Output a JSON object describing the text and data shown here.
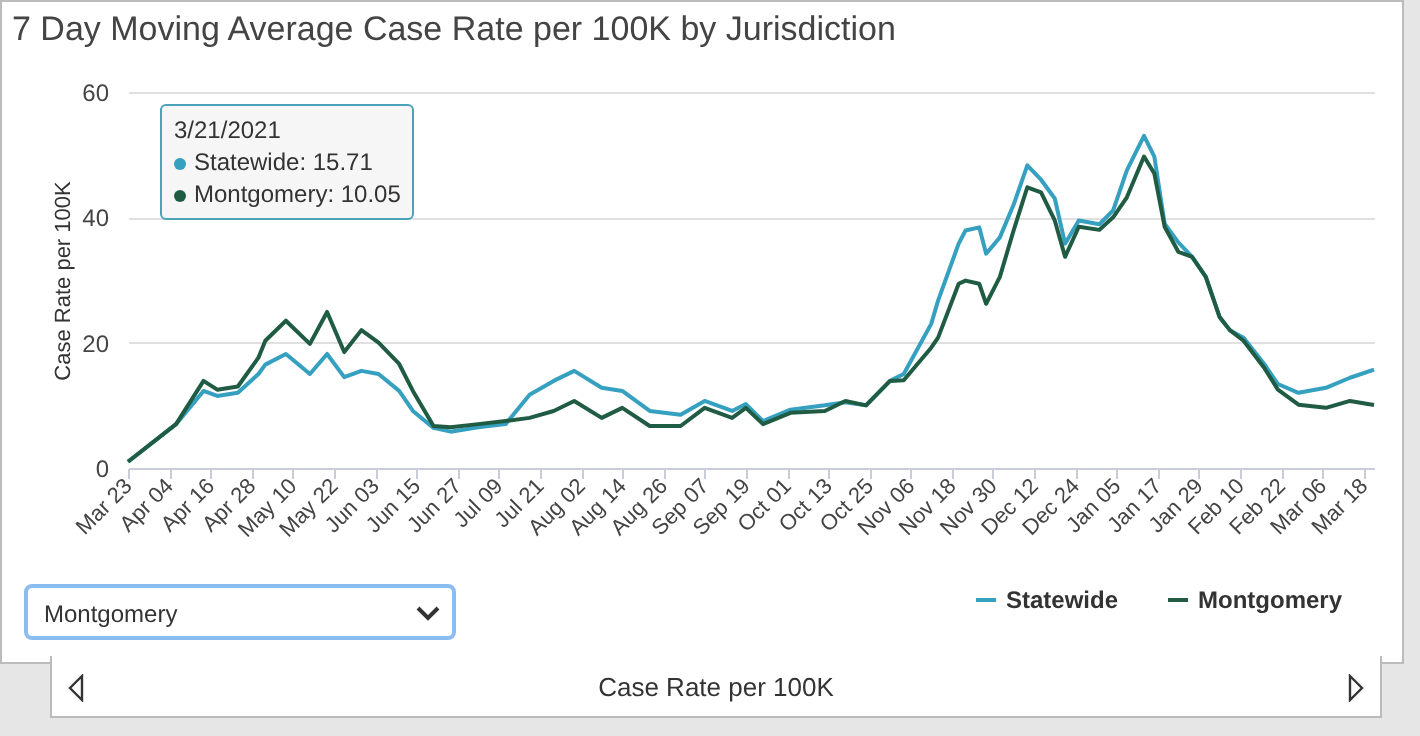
{
  "chart_data": {
    "type": "line",
    "title": "7 Day Moving Average Case Rate per 100K by Jurisdiction",
    "ylabel": "Case Rate per 100K",
    "x": [
      "2020-03-23",
      "2020-04-06",
      "2020-04-14",
      "2020-04-18",
      "2020-04-24",
      "2020-04-30",
      "2020-05-02",
      "2020-05-08",
      "2020-05-15",
      "2020-05-20",
      "2020-05-25",
      "2020-05-30",
      "2020-06-04",
      "2020-06-10",
      "2020-06-14",
      "2020-06-20",
      "2020-06-25",
      "2020-07-03",
      "2020-07-11",
      "2020-07-18",
      "2020-07-25",
      "2020-07-31",
      "2020-08-08",
      "2020-08-14",
      "2020-08-22",
      "2020-08-31",
      "2020-09-07",
      "2020-09-15",
      "2020-09-19",
      "2020-09-24",
      "2020-10-02",
      "2020-10-12",
      "2020-10-18",
      "2020-10-24",
      "2020-10-31",
      "2020-11-04",
      "2020-11-12",
      "2020-11-14",
      "2020-11-20",
      "2020-11-22",
      "2020-11-26",
      "2020-11-28",
      "2020-12-02",
      "2020-12-06",
      "2020-12-10",
      "2020-12-14",
      "2020-12-18",
      "2020-12-21",
      "2020-12-25",
      "2020-12-31",
      "2021-01-04",
      "2021-01-08",
      "2021-01-13",
      "2021-01-16",
      "2021-01-19",
      "2021-01-23",
      "2021-01-27",
      "2021-01-31",
      "2021-02-04",
      "2021-02-07",
      "2021-02-11",
      "2021-02-17",
      "2021-02-21",
      "2021-02-27",
      "2021-03-07",
      "2021-03-14",
      "2021-03-21"
    ],
    "series": [
      {
        "name": "Statewide",
        "color": "#35a0c0",
        "values": [
          1,
          7,
          12.3,
          11.5,
          12,
          15,
          16.5,
          18.2,
          15,
          18.2,
          14.5,
          15.5,
          15,
          12.3,
          9.1,
          6.4,
          5.8,
          6.5,
          7,
          11.7,
          13.9,
          15.5,
          12.8,
          12.3,
          9.1,
          8.5,
          10.7,
          9.1,
          10.2,
          7.5,
          9.3,
          10,
          10.5,
          10,
          13.9,
          15,
          23,
          26.7,
          35.8,
          37.9,
          38.4,
          34.2,
          36.8,
          42,
          48.3,
          46,
          43,
          35.8,
          39.5,
          38.9,
          41.1,
          47.5,
          53,
          49.7,
          39,
          36,
          33.7,
          30.5,
          24.1,
          22,
          20.8,
          16.6,
          13.4,
          12,
          12.8,
          14.4,
          15.71
        ]
      },
      {
        "name": "Montgomery",
        "color": "#1f5c43",
        "values": [
          1,
          7,
          13.9,
          12.5,
          13,
          17.6,
          20.3,
          23.5,
          19.8,
          24.9,
          18.5,
          22,
          20,
          16.6,
          12.3,
          6.7,
          6.5,
          7,
          7.5,
          8,
          9.1,
          10.7,
          8,
          9.6,
          6.7,
          6.7,
          9.6,
          8,
          9.6,
          7,
          8.8,
          9.1,
          10.7,
          10,
          13.9,
          14,
          19.2,
          20.8,
          29.4,
          29.9,
          29.4,
          26.2,
          30.5,
          37.9,
          44.8,
          44,
          39.5,
          33.7,
          38.5,
          38,
          40,
          43.2,
          49.7,
          47,
          38.5,
          34.5,
          33.7,
          30.5,
          24.1,
          22,
          20.3,
          16,
          12.5,
          10.1,
          9.6,
          10.7,
          10.05
        ]
      }
    ],
    "xlim": [
      "2020-03-23",
      "2021-03-21"
    ],
    "xticks": [
      {
        "value": "2020-03-23",
        "label": "Mar 23"
      },
      {
        "value": "2020-04-04",
        "label": "Apr 04"
      },
      {
        "value": "2020-04-16",
        "label": "Apr 16"
      },
      {
        "value": "2020-04-28",
        "label": "Apr 28"
      },
      {
        "value": "2020-05-10",
        "label": "May 10"
      },
      {
        "value": "2020-05-22",
        "label": "May 22"
      },
      {
        "value": "2020-06-03",
        "label": "Jun 03"
      },
      {
        "value": "2020-06-15",
        "label": "Jun 15"
      },
      {
        "value": "2020-06-27",
        "label": "Jun 27"
      },
      {
        "value": "2020-07-09",
        "label": "Jul 09"
      },
      {
        "value": "2020-07-21",
        "label": "Jul 21"
      },
      {
        "value": "2020-08-02",
        "label": "Aug 02"
      },
      {
        "value": "2020-08-14",
        "label": "Aug 14"
      },
      {
        "value": "2020-08-26",
        "label": "Aug 26"
      },
      {
        "value": "2020-09-07",
        "label": "Sep 07"
      },
      {
        "value": "2020-09-19",
        "label": "Sep 19"
      },
      {
        "value": "2020-10-01",
        "label": "Oct 01"
      },
      {
        "value": "2020-10-13",
        "label": "Oct 13"
      },
      {
        "value": "2020-10-25",
        "label": "Oct 25"
      },
      {
        "value": "2020-11-06",
        "label": "Nov 06"
      },
      {
        "value": "2020-11-18",
        "label": "Nov 18"
      },
      {
        "value": "2020-11-30",
        "label": "Nov 30"
      },
      {
        "value": "2020-12-12",
        "label": "Dec 12"
      },
      {
        "value": "2020-12-24",
        "label": "Dec 24"
      },
      {
        "value": "2021-01-05",
        "label": "Jan 05"
      },
      {
        "value": "2021-01-17",
        "label": "Jan 17"
      },
      {
        "value": "2021-01-29",
        "label": "Jan 29"
      },
      {
        "value": "2021-02-10",
        "label": "Feb 10"
      },
      {
        "value": "2021-02-22",
        "label": "Feb 22"
      },
      {
        "value": "2021-03-06",
        "label": "Mar 06"
      },
      {
        "value": "2021-03-18",
        "label": "Mar 18"
      }
    ],
    "ylim": [
      0,
      60
    ],
    "yticks": [
      0,
      20,
      40,
      60
    ],
    "grid": "y",
    "legend": "bottom right",
    "annotations": [
      "3/21/2021",
      "Statewide: 15.71",
      "Montgomery: 10.05",
      "Montgomery",
      "Case Rate per 100K"
    ]
  }
}
